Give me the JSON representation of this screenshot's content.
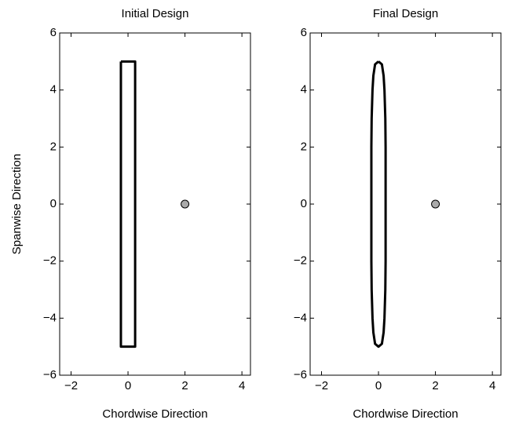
{
  "chart_data": [
    {
      "type": "line",
      "title": "Initial Design",
      "xlabel": "Chordwise Direction",
      "ylabel": "Spanwise Direction",
      "xlim": [
        -2.4,
        4.3
      ],
      "ylim": [
        -6,
        6
      ],
      "xticks": [
        {
          "value": -2,
          "label": "−2"
        },
        0,
        2,
        4
      ],
      "yticks": [
        {
          "value": -6,
          "label": "−6"
        },
        {
          "value": -4,
          "label": "−4"
        },
        {
          "value": -2,
          "label": "−2"
        },
        0,
        2,
        4,
        6
      ],
      "series": [
        {
          "color": "#000000",
          "x": [
            -0.25,
            0.25,
            0.25,
            -0.25,
            -0.25
          ],
          "y": [
            5,
            5,
            -5,
            -5,
            5
          ]
        }
      ],
      "points": {
        "color": "#aaaaaa",
        "x": [
          2
        ],
        "y": [
          0
        ]
      }
    },
    {
      "type": "line",
      "title": "Final Design",
      "xlabel": "Chordwise Direction",
      "xlim": [
        -2.4,
        4.3
      ],
      "ylim": [
        -6,
        6
      ],
      "xticks": [
        {
          "value": -2,
          "label": "−2"
        },
        0,
        2,
        4
      ],
      "yticks": [
        {
          "value": -6,
          "label": "−6"
        },
        {
          "value": -4,
          "label": "−4"
        },
        {
          "value": -2,
          "label": "−2"
        },
        0,
        2,
        4,
        6
      ],
      "series": [
        {
          "color": "#000000",
          "x": [
            0,
            0.12,
            0.18,
            0.21,
            0.24,
            0.25,
            0.25,
            0.25,
            0.25,
            0.25,
            0.24,
            0.21,
            0.18,
            0.12,
            0,
            -0.12,
            -0.18,
            -0.21,
            -0.24,
            -0.25,
            -0.25,
            -0.25,
            -0.25,
            -0.25,
            -0.24,
            -0.21,
            -0.18,
            -0.12,
            0
          ],
          "y": [
            5,
            4.9,
            4.5,
            4,
            3,
            2,
            1,
            0,
            -1,
            -2,
            -3,
            -4,
            -4.5,
            -4.9,
            -5,
            -4.9,
            -4.5,
            -4,
            -3,
            -2,
            -1,
            0,
            1,
            2,
            3,
            4,
            4.5,
            4.9,
            5
          ]
        }
      ],
      "points": {
        "color": "#aaaaaa",
        "x": [
          2
        ],
        "y": [
          0
        ]
      }
    }
  ]
}
